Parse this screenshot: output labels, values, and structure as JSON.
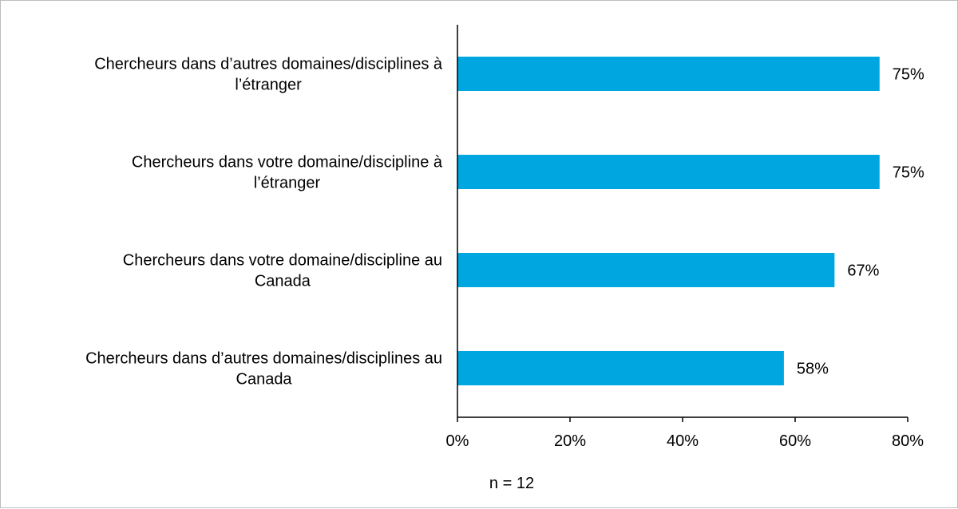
{
  "chart_data": {
    "type": "bar",
    "orientation": "horizontal",
    "categories": [
      "Chercheurs dans d’autres domaines/disciplines à l’étranger",
      "Chercheurs dans votre domaine/discipline à l’étranger",
      "Chercheurs dans votre domaine/discipline au Canada",
      "Chercheurs dans d’autres domaines/disciplines au Canada"
    ],
    "category_lines": [
      [
        "Chercheurs dans d’autres domaines/disciplines à",
        "l’étranger"
      ],
      [
        "Chercheurs dans votre domaine/discipline à",
        "l’étranger"
      ],
      [
        "Chercheurs dans votre domaine/discipline au",
        "Canada"
      ],
      [
        "Chercheurs dans d’autres domaines/disciplines au",
        "Canada"
      ]
    ],
    "values": [
      75,
      75,
      67,
      58
    ],
    "value_labels": [
      "75%",
      "75%",
      "67%",
      "58%"
    ],
    "xlim": [
      0,
      80
    ],
    "xticks": [
      0,
      20,
      40,
      60,
      80
    ],
    "xtick_labels": [
      "0%",
      "20%",
      "40%",
      "60%",
      "80%"
    ],
    "bar_color": "#00A6E0",
    "grid": false,
    "legend": "none",
    "note": "n = 12"
  }
}
